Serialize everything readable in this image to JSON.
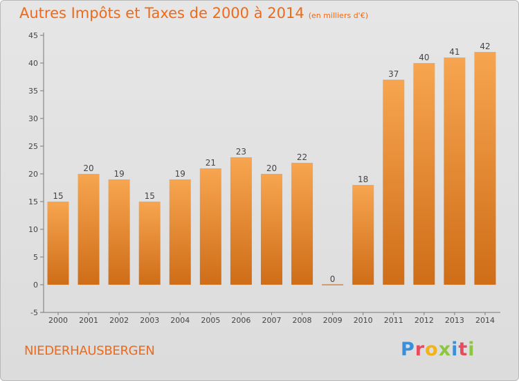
{
  "header": {
    "title": "Autres Impôts et Taxes de 2000 à 2014",
    "subtitle": "(en milliers d'€)"
  },
  "footer": {
    "city": "NIEDERHAUSBERGEN",
    "logo": "Proxiti",
    "logo_letters": [
      {
        "char": "P",
        "color": "#3a8fd8"
      },
      {
        "char": "r",
        "color": "#e84a5f"
      },
      {
        "char": "o",
        "color": "#f2b21a"
      },
      {
        "char": "x",
        "color": "#8cc63f"
      },
      {
        "char": "i",
        "color": "#3a8fd8"
      },
      {
        "char": "t",
        "color": "#e84a5f"
      },
      {
        "char": "i",
        "color": "#8cc63f"
      }
    ]
  },
  "colors": {
    "accent": "#ee6a1a",
    "bar_light": "#f7a550",
    "bar_dark": "#cf6d18"
  },
  "chart_data": {
    "type": "bar",
    "title": "Autres Impôts et Taxes de 2000 à 2014",
    "subtitle": "(en milliers d'€)",
    "categories": [
      "2000",
      "2001",
      "2002",
      "2003",
      "2004",
      "2005",
      "2006",
      "2007",
      "2008",
      "2009",
      "2010",
      "2011",
      "2012",
      "2013",
      "2014"
    ],
    "values": [
      15,
      20,
      19,
      15,
      19,
      21,
      23,
      20,
      22,
      0,
      18,
      37,
      40,
      41,
      42
    ],
    "value_labels": [
      "15",
      "20",
      "19",
      "15",
      "19",
      "21",
      "23",
      "20",
      "22",
      "0",
      "18",
      "37",
      "40",
      "41",
      "42"
    ],
    "yticks": [
      "-5",
      "0",
      "5",
      "10",
      "15",
      "20",
      "25",
      "30",
      "35",
      "40",
      "45"
    ],
    "ylim": [
      -5,
      45
    ],
    "grid": false,
    "xlabel": "",
    "ylabel": ""
  }
}
